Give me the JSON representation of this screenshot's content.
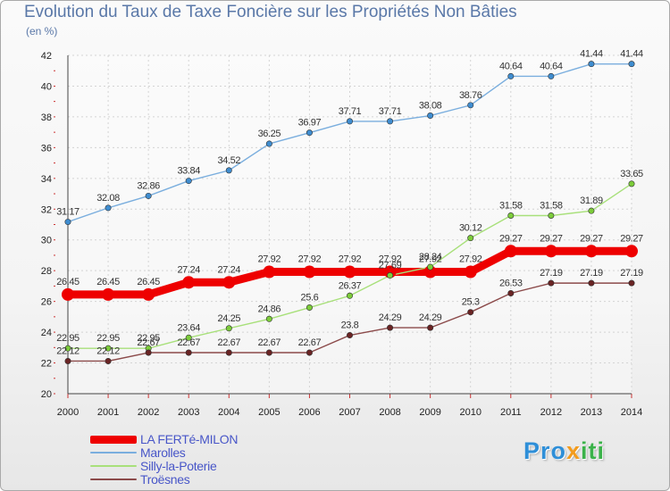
{
  "title": "Evolution du Taux de Taxe Foncière sur les Propriétés Non Bâties",
  "subtitle": "(en %)",
  "logo": {
    "parts": [
      "Pro",
      "x",
      "iti"
    ],
    "colors": [
      "#2f8fd8",
      "#f39c1e",
      "#3bb24a"
    ]
  },
  "chart_data": {
    "type": "line",
    "title": "Evolution du Taux de Taxe Foncière sur les Propriétés Non Bâties",
    "ylabel": "(en %)",
    "xlabel": "",
    "x": [
      "2000",
      "2001",
      "2002",
      "2003",
      "2004",
      "2005",
      "2006",
      "2007",
      "2008",
      "2009",
      "2010",
      "2011",
      "2012",
      "2013",
      "2014"
    ],
    "ylim": [
      20,
      42
    ],
    "yticks": [
      "20",
      "22",
      "24",
      "26",
      "28",
      "30",
      "32",
      "34",
      "36",
      "38",
      "40",
      "42"
    ],
    "grid": true,
    "legend": "bottom-left",
    "series": [
      {
        "name": "LA FERTé-MILON",
        "color": "#ee0000",
        "marker": "#ee0000",
        "width": "thick",
        "values": [
          26.45,
          26.45,
          26.45,
          27.24,
          27.24,
          27.92,
          27.92,
          27.92,
          27.92,
          27.92,
          27.92,
          29.27,
          29.27,
          29.27,
          29.27
        ],
        "labels": [
          "26.45",
          "26.45",
          "26.45",
          "27.24",
          "27.24",
          "27.92",
          "27.92",
          "27.92",
          "27.92",
          "27.92",
          "27.92",
          "29.27",
          "29.27",
          "29.27",
          "29.27"
        ]
      },
      {
        "name": "Marolles",
        "color": "#7aaede",
        "marker": "#3f8dd0",
        "width": "thin",
        "values": [
          31.17,
          32.08,
          32.86,
          33.84,
          34.52,
          36.25,
          36.97,
          37.71,
          37.71,
          38.08,
          38.76,
          40.64,
          40.64,
          41.44,
          41.44
        ],
        "labels": [
          "31.17",
          "32.08",
          "32.86",
          "33.84",
          "34.52",
          "36.25",
          "36.97",
          "37.71",
          "37.71",
          "38.08",
          "38.76",
          "40.64",
          "40.64",
          "41.44",
          "41.44"
        ]
      },
      {
        "name": "Silly-la-Poterie",
        "color": "#a8e07a",
        "marker": "#7ccc3a",
        "width": "thin",
        "values": [
          22.95,
          22.95,
          22.95,
          23.64,
          24.25,
          24.86,
          25.6,
          26.37,
          27.69,
          28.24,
          30.12,
          31.58,
          31.58,
          31.89,
          33.65
        ],
        "labels": [
          "22.95",
          "22.95",
          "22.95",
          "23.64",
          "24.25",
          "24.86",
          "25.6",
          "26.37",
          "27.69",
          "28.24",
          "30.12",
          "31.58",
          "31.58",
          "31.89",
          "33.65"
        ]
      },
      {
        "name": "Troësnes",
        "color": "#8b4a4a",
        "marker": "#6a2424",
        "width": "thin",
        "values": [
          22.12,
          22.12,
          22.67,
          22.67,
          22.67,
          22.67,
          22.67,
          23.8,
          24.29,
          24.29,
          25.3,
          26.53,
          27.19,
          27.19,
          27.19
        ],
        "labels": [
          "22.12",
          "22.12",
          "22.67",
          "22.67",
          "22.67",
          "22.67",
          "22.67",
          "23.8",
          "24.29",
          "24.29",
          "25.3",
          "26.53",
          "27.19",
          "27.19",
          "27.19"
        ]
      }
    ]
  }
}
